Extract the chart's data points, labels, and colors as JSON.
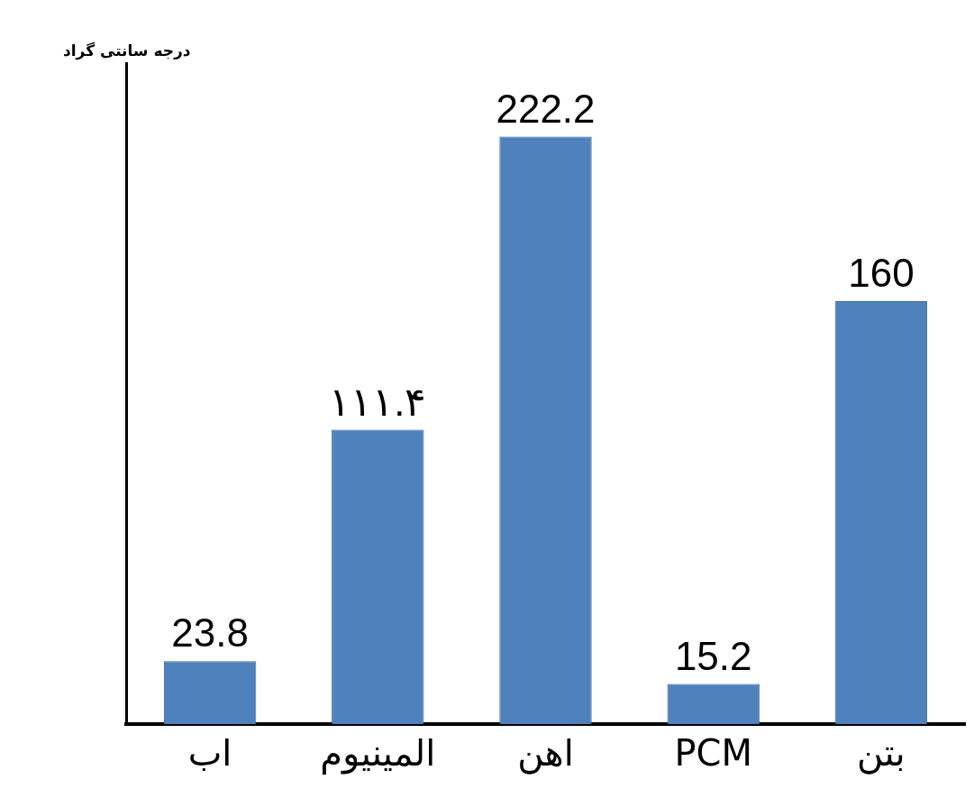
{
  "chart_data": {
    "type": "bar",
    "annotations": [
      "درجه سانتی گراد"
    ],
    "categories": [
      "اب",
      "المینیوم",
      "اهن",
      "PCM",
      "بتن"
    ],
    "values": [
      23.8,
      111.4,
      222.2,
      15.2,
      160
    ],
    "value_labels": [
      "23.8",
      "۱۱۱.۴",
      "222.2",
      "15.2",
      "160"
    ],
    "color": "#4f81bd",
    "grid": false,
    "legend": false,
    "tick_labels": "x"
  }
}
